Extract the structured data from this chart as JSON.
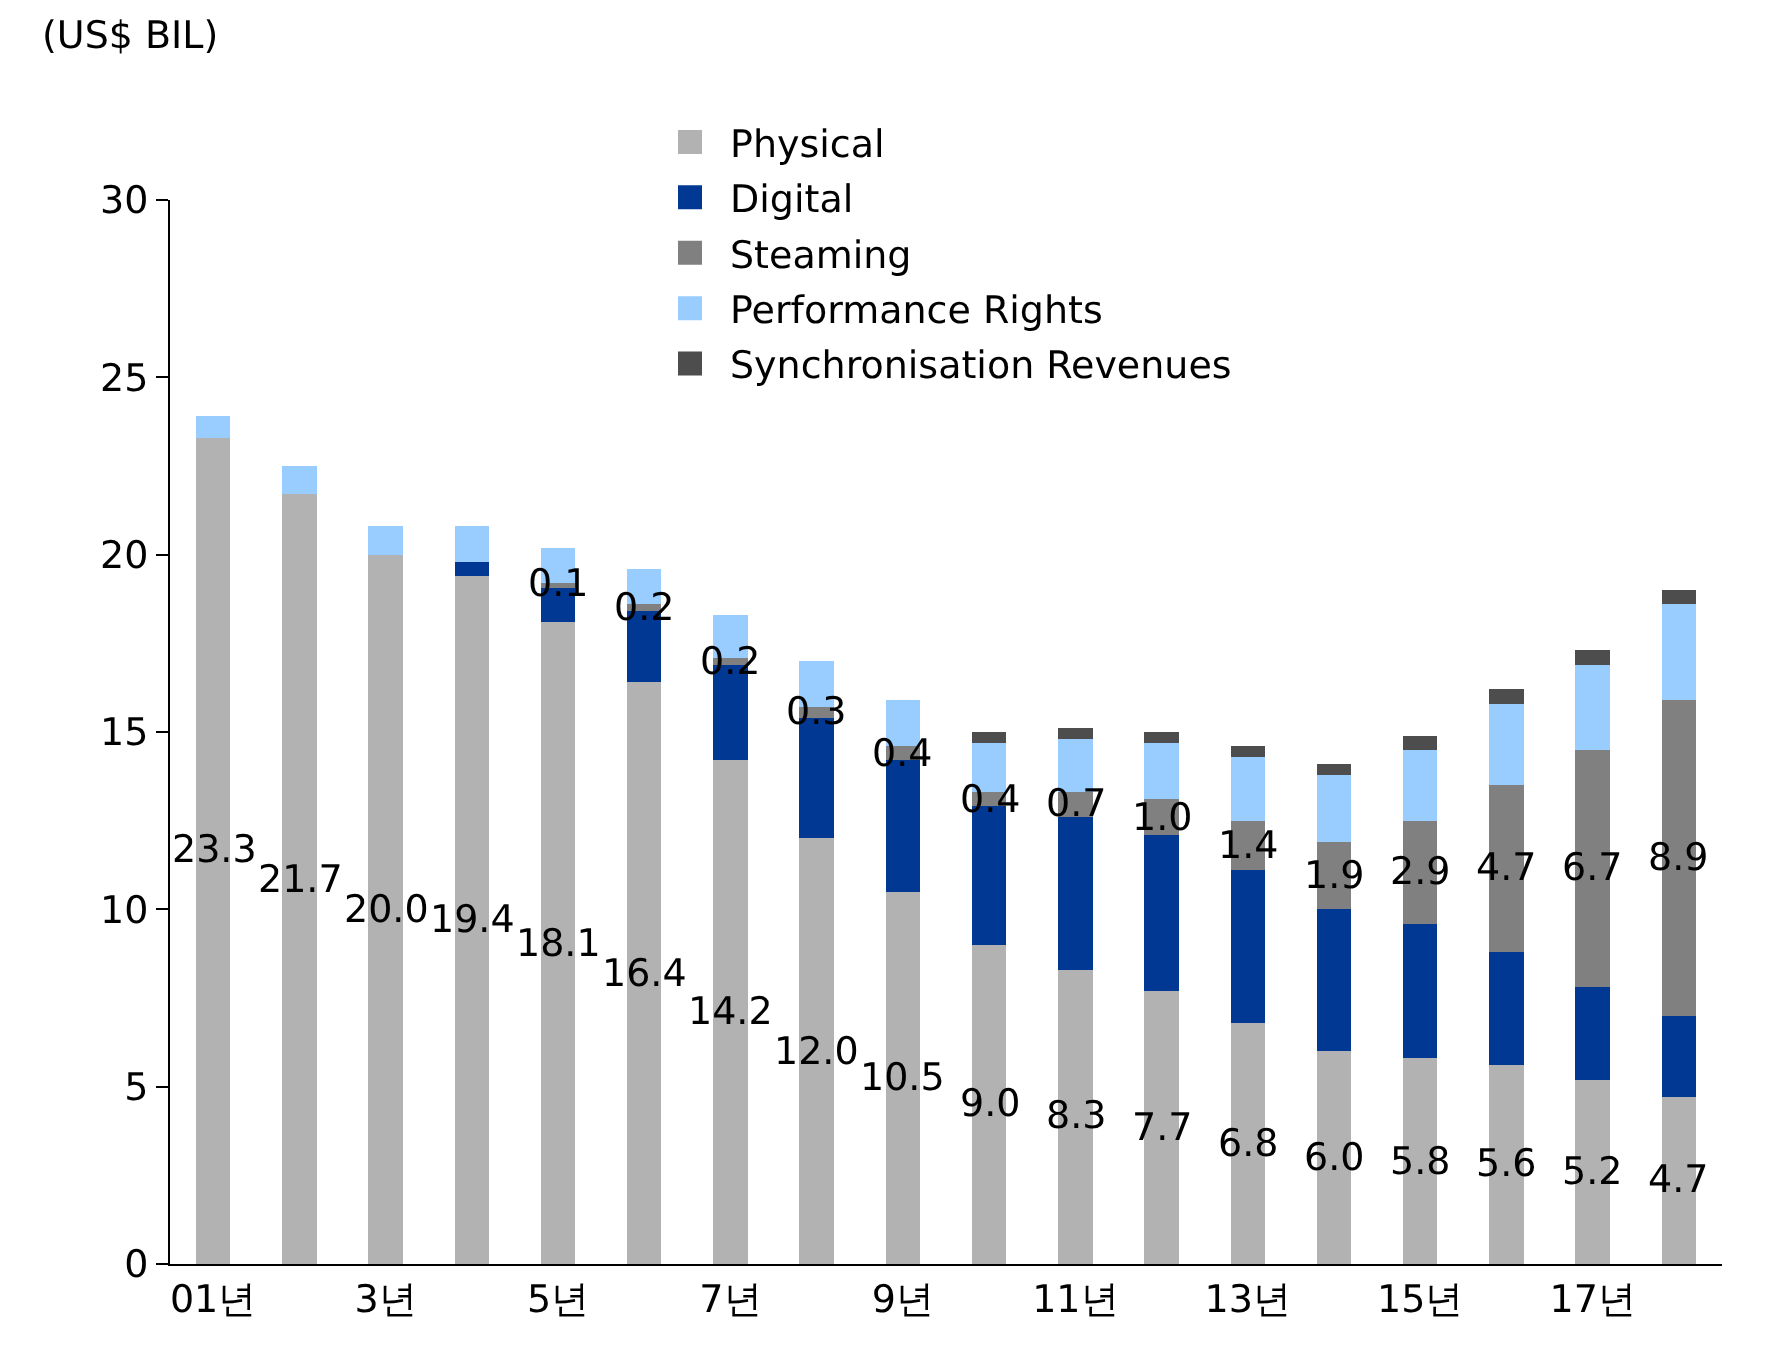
{
  "chart_data": {
    "type": "bar",
    "stacked": true,
    "ylabel": "(US$ BIL)",
    "categories": [
      "01년",
      null,
      "3년",
      null,
      "5년",
      null,
      "7년",
      null,
      "9년",
      null,
      "11년",
      null,
      "13년",
      null,
      "15년",
      null,
      "17년",
      null
    ],
    "series": [
      {
        "name": "Physical",
        "color": "#b2b2b2",
        "values": [
          23.3,
          21.7,
          20.0,
          19.4,
          18.1,
          16.4,
          14.2,
          12.0,
          10.5,
          9.0,
          8.3,
          7.7,
          6.8,
          6.0,
          5.8,
          5.6,
          5.2,
          4.7
        ],
        "value_labels": [
          "23.3",
          "21.7",
          "20.0",
          "19.4",
          "18.1",
          "16.4",
          "14.2",
          "12.0",
          "10.5",
          "9.0",
          "8.3",
          "7.7",
          "6.8",
          "6.0",
          "5.8",
          "5.6",
          "5.2",
          "4.7"
        ]
      },
      {
        "name": "Digital",
        "color": "#003893",
        "values": [
          null,
          null,
          null,
          0.4,
          1.0,
          2.0,
          2.7,
          3.4,
          3.7,
          3.9,
          4.3,
          4.4,
          4.3,
          4.0,
          3.8,
          3.2,
          2.6,
          2.3
        ]
      },
      {
        "name": "Steaming",
        "color": "#808080",
        "values": [
          null,
          null,
          null,
          null,
          0.1,
          0.2,
          0.2,
          0.3,
          0.4,
          0.4,
          0.7,
          1.0,
          1.4,
          1.9,
          2.9,
          4.7,
          6.7,
          8.9
        ],
        "value_labels": [
          null,
          null,
          null,
          null,
          "0.1",
          "0.2",
          "0.2",
          "0.3",
          "0.4",
          "0.4",
          "0.7",
          "1.0",
          "1.4",
          "1.9",
          "2.9",
          "4.7",
          "6.7",
          "8.9"
        ]
      },
      {
        "name": "Performance Rights",
        "color": "#99ccff",
        "values": [
          0.6,
          0.8,
          0.8,
          1.0,
          1.0,
          1.0,
          1.2,
          1.3,
          1.3,
          1.4,
          1.5,
          1.6,
          1.8,
          1.9,
          2.0,
          2.3,
          2.4,
          2.7
        ]
      },
      {
        "name": "Synchronisation Revenues",
        "color": "#4d4d4d",
        "values": [
          null,
          null,
          null,
          null,
          null,
          null,
          null,
          null,
          null,
          0.3,
          0.3,
          0.3,
          0.3,
          0.3,
          0.4,
          0.4,
          0.4,
          0.4
        ]
      }
    ],
    "ylim": [
      0,
      30
    ],
    "yticks": [
      0,
      5,
      10,
      15,
      20,
      25,
      30
    ],
    "grid": false,
    "legend": "top"
  }
}
